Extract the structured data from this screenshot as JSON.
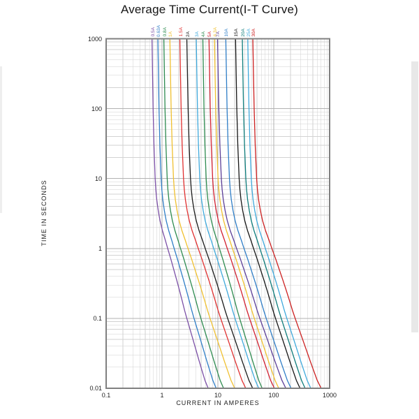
{
  "page": {
    "background": "#ffffff"
  },
  "chart_data": {
    "type": "line",
    "title": "Average Time Current(I-T Curve)",
    "xlabel": "CURRENT IN AMPERES",
    "ylabel": "TIME IN SECONDS",
    "x_scale": "log",
    "y_scale": "log",
    "xlim": [
      0.1,
      1000
    ],
    "ylim": [
      0.01,
      1000
    ],
    "x_tick_labels": [
      "0.1",
      "1",
      "10",
      "100",
      "1000"
    ],
    "y_tick_labels": [
      "1000",
      "100",
      "10",
      "1",
      "0.1",
      "0.01"
    ],
    "grid": true,
    "legend_position": "labels-above-plot",
    "melt_time_s": [
      1000,
      300,
      100,
      30,
      10,
      7,
      5,
      3.5,
      2.5,
      1.8,
      1.3,
      1,
      0.7,
      0.5,
      0.35,
      0.25,
      0.18,
      0.13,
      0.1,
      0.07,
      0.05,
      0.035,
      0.025,
      0.018,
      0.013,
      0.01
    ],
    "melt_current_multiple_base": [
      1.32,
      1.35,
      1.38,
      1.43,
      1.5,
      1.54,
      1.6,
      1.7,
      1.83,
      2.02,
      2.28,
      2.5,
      2.85,
      3.2,
      3.62,
      4.05,
      4.5,
      4.98,
      5.45,
      6.2,
      7.0,
      7.95,
      8.95,
      10.1,
      11.4,
      13.0
    ],
    "series": [
      {
        "label": "0.5A",
        "rating_amps": 0.5,
        "color": "#7B4FA6",
        "multiple_at_0_01s": 13.4
      },
      {
        "label": "0.63A",
        "rating_amps": 0.63,
        "color": "#2F7EC7",
        "multiple_at_0_01s": 14.8
      },
      {
        "label": "0.8A",
        "rating_amps": 0.8,
        "color": "#2E8B50",
        "multiple_at_0_01s": 15.8
      },
      {
        "label": "1A",
        "rating_amps": 1.0,
        "color": "#F0C030",
        "multiple_at_0_01s": 20.0
      },
      {
        "label": "1.5A",
        "rating_amps": 1.5,
        "color": "#E03030",
        "multiple_at_0_01s": 21.0
      },
      {
        "label": "2A",
        "rating_amps": 2.0,
        "color": "#1A1A1A",
        "multiple_at_0_01s": 21.0
      },
      {
        "label": "3A",
        "rating_amps": 3.0,
        "color": "#3FA9DC",
        "multiple_at_0_01s": 18.0
      },
      {
        "label": "4A",
        "rating_amps": 4.0,
        "color": "#2E8B50",
        "multiple_at_0_01s": 15.5
      },
      {
        "label": "5A",
        "rating_amps": 5.0,
        "color": "#D22030",
        "multiple_at_0_01s": 20.5
      },
      {
        "label": "6.3A",
        "rating_amps": 6.3,
        "color": "#F0C030",
        "multiple_at_0_01s": 19.5
      },
      {
        "label": "7A",
        "rating_amps": 7.0,
        "color": "#5B3E98",
        "multiple_at_0_01s": 23.5
      },
      {
        "label": "10A",
        "rating_amps": 10.0,
        "color": "#2F7EC7",
        "multiple_at_0_01s": 20.4
      },
      {
        "label": "15A",
        "rating_amps": 15.0,
        "color": "#151515",
        "multiple_at_0_01s": 19.7
      },
      {
        "label": "20A",
        "rating_amps": 20.0,
        "color": "#0E7C7B",
        "multiple_at_0_01s": 18.2
      },
      {
        "label": "25A",
        "rating_amps": 25.0,
        "color": "#3FA9DC",
        "multiple_at_0_01s": 18.4
      },
      {
        "label": "30A",
        "rating_amps": 30.0,
        "color": "#CC2020",
        "multiple_at_0_01s": 23.5
      }
    ]
  }
}
